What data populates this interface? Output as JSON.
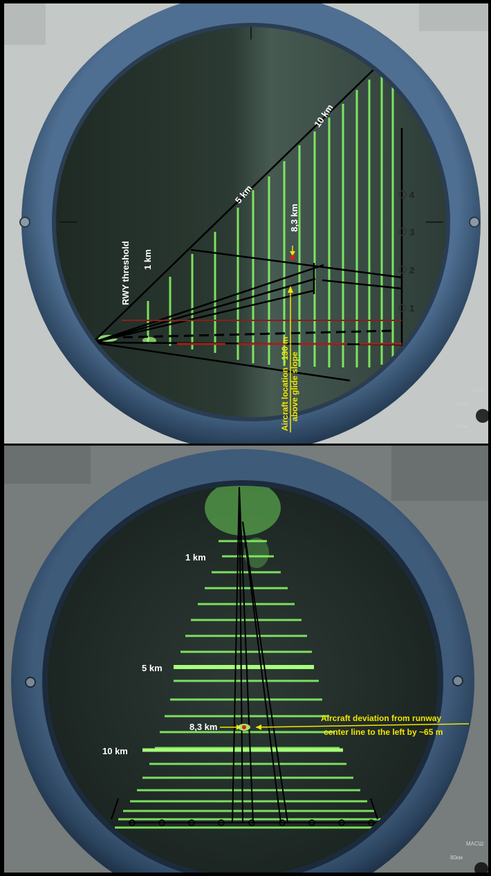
{
  "top_panel": {
    "labels": {
      "threshold": "RWY threshold",
      "km1": "1 km",
      "km5": "5 km",
      "km10": "10 km",
      "km83": "8,3 km",
      "aircraft_line1": "Aircraft location ~130 m",
      "aircraft_line2": "above glide slope"
    },
    "scale_marks": [
      "1",
      "2",
      "3",
      "4"
    ],
    "corner_text": {
      "mode": "MAC",
      "range1": "80км",
      "range2": "20км"
    }
  },
  "bottom_panel": {
    "labels": {
      "km1": "1 km",
      "km5": "5 km",
      "km10": "10 km",
      "km83": "8,3 km",
      "deviation_line1": "Aircraft deviation from runway",
      "deviation_line2": "center line to the left by ~65 m"
    },
    "corner_text": {
      "mode": "MACШ",
      "range": "80км"
    }
  },
  "colors": {
    "bezel": "#3e5a7a",
    "panel_bg": "#c3c8c6",
    "screen": "#1e2a22",
    "trace": "#7dff5a",
    "annotation": "#f2e600"
  }
}
